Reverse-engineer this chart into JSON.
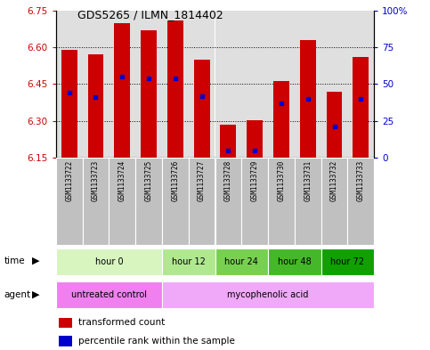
{
  "title": "GDS5265 / ILMN_1814402",
  "samples": [
    "GSM1133722",
    "GSM1133723",
    "GSM1133724",
    "GSM1133725",
    "GSM1133726",
    "GSM1133727",
    "GSM1133728",
    "GSM1133729",
    "GSM1133730",
    "GSM1133731",
    "GSM1133732",
    "GSM1133733"
  ],
  "bar_tops": [
    6.59,
    6.57,
    6.7,
    6.67,
    6.71,
    6.55,
    6.285,
    6.303,
    6.462,
    6.63,
    6.42,
    6.56
  ],
  "percentiles": [
    44,
    41,
    55,
    54,
    54,
    42,
    5,
    5,
    37,
    40,
    21,
    40
  ],
  "bar_bottom": 6.15,
  "ylim": [
    6.15,
    6.75
  ],
  "y2lim": [
    0,
    100
  ],
  "yticks": [
    6.15,
    6.3,
    6.45,
    6.6,
    6.75
  ],
  "y2ticks": [
    0,
    25,
    50,
    75,
    100
  ],
  "y2ticklabels": [
    "0",
    "25",
    "50",
    "75",
    "100%"
  ],
  "bar_color": "#CC0000",
  "percentile_color": "#0000CC",
  "bg_color": "#ffffff",
  "sample_bg": "#c0c0c0",
  "time_groups": [
    {
      "label": "hour 0",
      "start": 0,
      "end": 3,
      "color": "#d8f5c0"
    },
    {
      "label": "hour 12",
      "start": 4,
      "end": 5,
      "color": "#b0e890"
    },
    {
      "label": "hour 24",
      "start": 6,
      "end": 7,
      "color": "#78d050"
    },
    {
      "label": "hour 48",
      "start": 8,
      "end": 9,
      "color": "#44b828"
    },
    {
      "label": "hour 72",
      "start": 10,
      "end": 11,
      "color": "#10a000"
    }
  ],
  "agent_groups": [
    {
      "label": "untreated control",
      "start": 0,
      "end": 3,
      "color": "#f080f0"
    },
    {
      "label": "mycophenolic acid",
      "start": 4,
      "end": 11,
      "color": "#f0a0f8"
    }
  ]
}
